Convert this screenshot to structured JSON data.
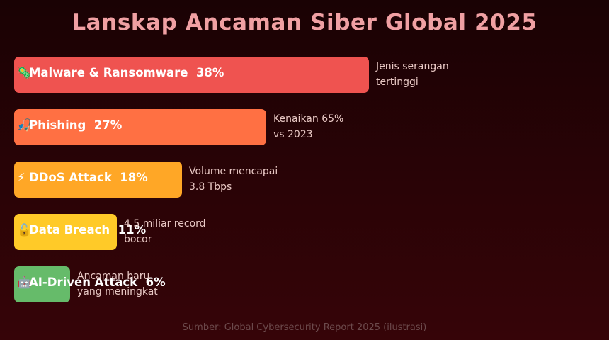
{
  "chart_data": {
    "type": "bar",
    "orientation": "horizontal",
    "title": "Lanskap Ancaman Siber Global 2025",
    "categories": [
      "Malware & Ransomware",
      "Phishing",
      "DDoS Attack",
      "Data Breach",
      "AI-Driven Attack"
    ],
    "values": [
      38,
      27,
      18,
      11,
      6
    ],
    "value_labels": [
      "38%",
      "27%",
      "18%",
      "11%",
      "6%"
    ],
    "icons": [
      "🦠",
      "🎣",
      "⚡",
      "🔓",
      "🤖"
    ],
    "icon_names": [
      "virus-icon",
      "fishing-icon",
      "lightning-icon",
      "unlock-icon",
      "robot-icon"
    ],
    "notes": [
      [
        "Jenis serangan",
        "tertinggi"
      ],
      [
        "Kenaikan 65%",
        "vs 2023"
      ],
      [
        "Volume mencapai",
        "3.8 Tbps"
      ],
      [
        "4.5 miliar record",
        "bocor"
      ],
      [
        "Ancaman baru",
        "yang meningkat"
      ]
    ],
    "colors": [
      "#ef5350",
      "#ff7043",
      "#ffa726",
      "#ffca28",
      "#66bb6a"
    ],
    "xlim": [
      0,
      38
    ],
    "grid": false,
    "legend": "none",
    "source": "Sumber: Global Cybersecurity Report 2025 (ilustrasi)"
  }
}
